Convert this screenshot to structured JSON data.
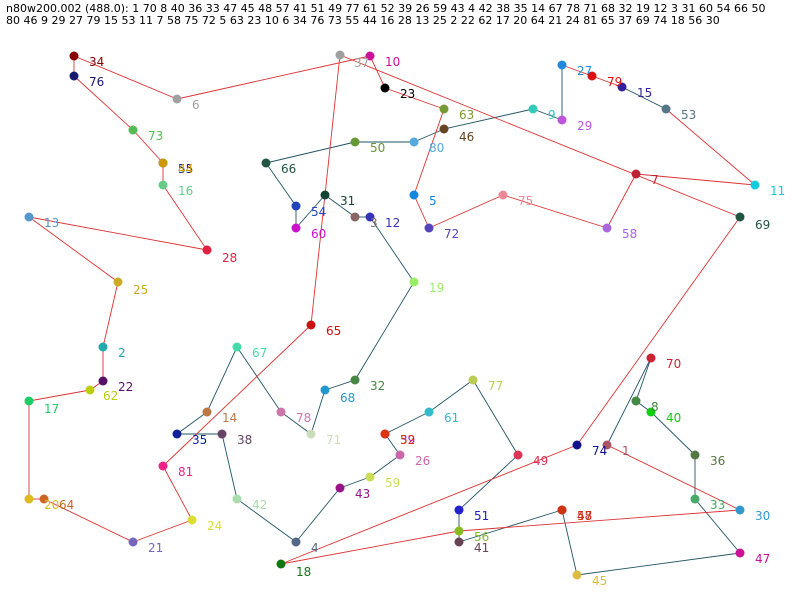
{
  "header": {
    "line1": "n80w200.002 (488.0): 1 70 8 40 36 33 47 45 48 57 41 51 49 77 61 52 39 26 59 43 4 42 38 35 14 67 78 71 68 32 19 12 3 31 60 54 66 50",
    "line2": " 80 46 9 29 27 79 15 53 11 7 58 75 72 5 63 23 10 6 34 76 73 55 44 16 28 13 25 2 22 62 17 20 64 21 24 81 65 37 69 74 18 56 30"
  },
  "nodes": [
    {
      "id": "34",
      "color": "#8b0000"
    },
    {
      "id": "76",
      "color": "#191970"
    },
    {
      "id": "6",
      "color": "#a0a0a0"
    },
    {
      "id": "37",
      "color": "#a0a0a0"
    },
    {
      "id": "10",
      "color": "#cc1199"
    },
    {
      "id": "23",
      "color": "#000000"
    },
    {
      "id": "73",
      "color": "#55bb55"
    },
    {
      "id": "55",
      "color": "#1a1aa0"
    },
    {
      "id": "44",
      "color": "#cc9900"
    },
    {
      "id": "16",
      "color": "#66cc88"
    },
    {
      "id": "28",
      "color": "#dd2244"
    },
    {
      "id": "13",
      "color": "#5599cc"
    },
    {
      "id": "25",
      "color": "#ccaa22"
    },
    {
      "id": "2",
      "color": "#22aaaa"
    },
    {
      "id": "22",
      "color": "#551166"
    },
    {
      "id": "62",
      "color": "#bbcc11"
    },
    {
      "id": "17",
      "color": "#22cc66"
    },
    {
      "id": "20",
      "color": "#ddbb22"
    },
    {
      "id": "64",
      "color": "#cc6622"
    },
    {
      "id": "21",
      "color": "#7766bb"
    },
    {
      "id": "24",
      "color": "#dddd33"
    },
    {
      "id": "81",
      "color": "#ee2288"
    },
    {
      "id": "65",
      "color": "#cc1111"
    },
    {
      "id": "66",
      "color": "#225544"
    },
    {
      "id": "50",
      "color": "#669933"
    },
    {
      "id": "80",
      "color": "#55aadd"
    },
    {
      "id": "63",
      "color": "#779933"
    },
    {
      "id": "46",
      "color": "#664422"
    },
    {
      "id": "9",
      "color": "#33ccbb"
    },
    {
      "id": "27",
      "color": "#2288dd"
    },
    {
      "id": "79",
      "color": "#dd1111"
    },
    {
      "id": "15",
      "color": "#332299"
    },
    {
      "id": "53",
      "color": "#557788"
    },
    {
      "id": "29",
      "color": "#bb55dd"
    },
    {
      "id": "11",
      "color": "#11ccdd"
    },
    {
      "id": "7",
      "color": "#bb2233"
    },
    {
      "id": "58",
      "color": "#aa66dd"
    },
    {
      "id": "75",
      "color": "#ee8899"
    },
    {
      "id": "72",
      "color": "#5544bb"
    },
    {
      "id": "5",
      "color": "#1188dd"
    },
    {
      "id": "54",
      "color": "#2244bb"
    },
    {
      "id": "31",
      "color": "#114433"
    },
    {
      "id": "3",
      "color": "#886666"
    },
    {
      "id": "12",
      "color": "#3333bb"
    },
    {
      "id": "60",
      "color": "#cc11cc"
    },
    {
      "id": "69",
      "color": "#225544"
    },
    {
      "id": "19",
      "color": "#99ee66"
    },
    {
      "id": "67",
      "color": "#44ddaa"
    },
    {
      "id": "78",
      "color": "#cc77aa"
    },
    {
      "id": "71",
      "color": "#ccddbb"
    },
    {
      "id": "68",
      "color": "#2299cc"
    },
    {
      "id": "32",
      "color": "#448844"
    },
    {
      "id": "14",
      "color": "#bb7744"
    },
    {
      "id": "35",
      "color": "#112299"
    },
    {
      "id": "38",
      "color": "#664466"
    },
    {
      "id": "42",
      "color": "#aaddaa"
    },
    {
      "id": "4",
      "color": "#556688"
    },
    {
      "id": "18",
      "color": "#117711"
    },
    {
      "id": "43",
      "color": "#991188"
    },
    {
      "id": "59",
      "color": "#ccdd55"
    },
    {
      "id": "39",
      "color": "#aa11dd"
    },
    {
      "id": "52",
      "color": "#dd3311"
    },
    {
      "id": "26",
      "color": "#cc66aa"
    },
    {
      "id": "61",
      "color": "#33bbcc"
    },
    {
      "id": "77",
      "color": "#bbcc55"
    },
    {
      "id": "49",
      "color": "#dd3355"
    },
    {
      "id": "51",
      "color": "#2222cc"
    },
    {
      "id": "56",
      "color": "#88bb22"
    },
    {
      "id": "41",
      "color": "#664455"
    },
    {
      "id": "48",
      "color": "#cc2222"
    },
    {
      "id": "57",
      "color": "#cc3311"
    },
    {
      "id": "45",
      "color": "#ddbb44"
    },
    {
      "id": "47",
      "color": "#cc1199"
    },
    {
      "id": "30",
      "color": "#3399cc"
    },
    {
      "id": "33",
      "color": "#44aa66"
    },
    {
      "id": "36",
      "color": "#557744"
    },
    {
      "id": "40",
      "color": "#11cc11"
    },
    {
      "id": "8",
      "color": "#448844"
    },
    {
      "id": "70",
      "color": "#cc2233"
    },
    {
      "id": "1",
      "color": "#aa5566"
    },
    {
      "id": "74",
      "color": "#111188"
    }
  ],
  "edges": [
    {
      "from": "1",
      "to": "70",
      "color": "#225566"
    },
    {
      "from": "70",
      "to": "8",
      "color": "#225566"
    },
    {
      "from": "8",
      "to": "40",
      "color": "#225566"
    },
    {
      "from": "40",
      "to": "36",
      "color": "#225566"
    },
    {
      "from": "36",
      "to": "33",
      "color": "#225566"
    },
    {
      "from": "33",
      "to": "47",
      "color": "#225566"
    },
    {
      "from": "47",
      "to": "45",
      "color": "#225566"
    },
    {
      "from": "45",
      "to": "48",
      "color": "#225566"
    },
    {
      "from": "48",
      "to": "57",
      "color": "#225566"
    },
    {
      "from": "57",
      "to": "41",
      "color": "#225566"
    },
    {
      "from": "41",
      "to": "51",
      "color": "#225566"
    },
    {
      "from": "51",
      "to": "49",
      "color": "#225566"
    },
    {
      "from": "49",
      "to": "77",
      "color": "#225566"
    },
    {
      "from": "77",
      "to": "61",
      "color": "#225566"
    },
    {
      "from": "61",
      "to": "52",
      "color": "#225566"
    },
    {
      "from": "52",
      "to": "39",
      "color": "#225566"
    },
    {
      "from": "39",
      "to": "26",
      "color": "#225566"
    },
    {
      "from": "26",
      "to": "59",
      "color": "#225566"
    },
    {
      "from": "59",
      "to": "43",
      "color": "#225566"
    },
    {
      "from": "43",
      "to": "4",
      "color": "#225566"
    },
    {
      "from": "4",
      "to": "42",
      "color": "#225566"
    },
    {
      "from": "42",
      "to": "38",
      "color": "#225566"
    },
    {
      "from": "38",
      "to": "35",
      "color": "#225566"
    },
    {
      "from": "35",
      "to": "14",
      "color": "#225566"
    },
    {
      "from": "14",
      "to": "67",
      "color": "#225566"
    },
    {
      "from": "67",
      "to": "78",
      "color": "#225566"
    },
    {
      "from": "78",
      "to": "71",
      "color": "#225566"
    },
    {
      "from": "71",
      "to": "68",
      "color": "#225566"
    },
    {
      "from": "68",
      "to": "32",
      "color": "#225566"
    },
    {
      "from": "32",
      "to": "19",
      "color": "#225566"
    },
    {
      "from": "19",
      "to": "12",
      "color": "#225566"
    },
    {
      "from": "12",
      "to": "3",
      "color": "#225566"
    },
    {
      "from": "3",
      "to": "31",
      "color": "#225566"
    },
    {
      "from": "31",
      "to": "60",
      "color": "#225566"
    },
    {
      "from": "60",
      "to": "54",
      "color": "#225566"
    },
    {
      "from": "54",
      "to": "66",
      "color": "#225566"
    },
    {
      "from": "66",
      "to": "50",
      "color": "#225566"
    },
    {
      "from": "50",
      "to": "80",
      "color": "#225566"
    },
    {
      "from": "80",
      "to": "46",
      "color": "#225566"
    },
    {
      "from": "46",
      "to": "9",
      "color": "#225566"
    },
    {
      "from": "9",
      "to": "29",
      "color": "#225566"
    },
    {
      "from": "29",
      "to": "27",
      "color": "#225566"
    },
    {
      "from": "27",
      "to": "79",
      "color": "#dd3333"
    },
    {
      "from": "79",
      "to": "15",
      "color": "#dd3333"
    },
    {
      "from": "15",
      "to": "53",
      "color": "#225566"
    },
    {
      "from": "53",
      "to": "11",
      "color": "#dd3333"
    },
    {
      "from": "11",
      "to": "7",
      "color": "#dd3333"
    },
    {
      "from": "7",
      "to": "58",
      "color": "#dd3333"
    },
    {
      "from": "58",
      "to": "75",
      "color": "#dd3333"
    },
    {
      "from": "75",
      "to": "72",
      "color": "#dd3333"
    },
    {
      "from": "72",
      "to": "5",
      "color": "#dd3333"
    },
    {
      "from": "5",
      "to": "63",
      "color": "#dd3333"
    },
    {
      "from": "63",
      "to": "23",
      "color": "#dd3333"
    },
    {
      "from": "23",
      "to": "10",
      "color": "#dd3333"
    },
    {
      "from": "10",
      "to": "6",
      "color": "#dd3333"
    },
    {
      "from": "6",
      "to": "34",
      "color": "#dd3333"
    },
    {
      "from": "34",
      "to": "76",
      "color": "#dd3333"
    },
    {
      "from": "76",
      "to": "73",
      "color": "#dd3333"
    },
    {
      "from": "73",
      "to": "55",
      "color": "#dd3333"
    },
    {
      "from": "55",
      "to": "44",
      "color": "#dd3333"
    },
    {
      "from": "44",
      "to": "16",
      "color": "#dd3333"
    },
    {
      "from": "16",
      "to": "28",
      "color": "#dd3333"
    },
    {
      "from": "28",
      "to": "13",
      "color": "#dd3333"
    },
    {
      "from": "13",
      "to": "25",
      "color": "#dd3333"
    },
    {
      "from": "25",
      "to": "2",
      "color": "#dd3333"
    },
    {
      "from": "2",
      "to": "22",
      "color": "#dd3333"
    },
    {
      "from": "22",
      "to": "62",
      "color": "#dd3333"
    },
    {
      "from": "62",
      "to": "17",
      "color": "#dd3333"
    },
    {
      "from": "17",
      "to": "20",
      "color": "#dd3333"
    },
    {
      "from": "20",
      "to": "64",
      "color": "#dd3333"
    },
    {
      "from": "64",
      "to": "21",
      "color": "#dd3333"
    },
    {
      "from": "21",
      "to": "24",
      "color": "#dd3333"
    },
    {
      "from": "24",
      "to": "81",
      "color": "#dd3333"
    },
    {
      "from": "81",
      "to": "65",
      "color": "#dd3333"
    },
    {
      "from": "65",
      "to": "37",
      "color": "#dd3333"
    },
    {
      "from": "37",
      "to": "69",
      "color": "#dd3333"
    },
    {
      "from": "69",
      "to": "74",
      "color": "#dd3333"
    },
    {
      "from": "74",
      "to": "18",
      "color": "#dd3333"
    },
    {
      "from": "18",
      "to": "56",
      "color": "#dd3333"
    },
    {
      "from": "56",
      "to": "30",
      "color": "#dd3333"
    },
    {
      "from": "30",
      "to": "1",
      "color": "#dd3333"
    }
  ]
}
